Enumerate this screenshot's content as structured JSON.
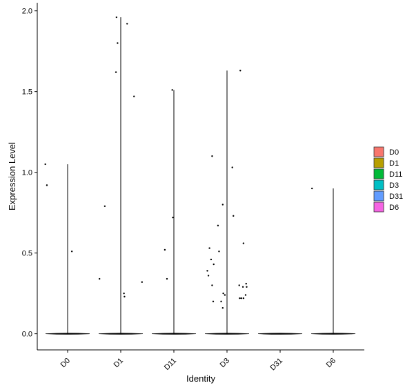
{
  "chart_data": {
    "type": "violin",
    "xlabel": "Identity",
    "ylabel": "Expression Level",
    "categories": [
      "D0",
      "D1",
      "D11",
      "D3",
      "D31",
      "D6"
    ],
    "ylim": [
      -0.1,
      2.05
    ],
    "yticks": [
      0.0,
      0.5,
      1.0,
      1.5,
      2.0
    ],
    "ytick_labels": [
      "0.0",
      "0.5",
      "1.0",
      "1.5",
      "2.0"
    ],
    "legend": {
      "position": "right",
      "entries": [
        {
          "label": "D0",
          "color": "#F8766D"
        },
        {
          "label": "D1",
          "color": "#B79F00"
        },
        {
          "label": "D11",
          "color": "#00BA38"
        },
        {
          "label": "D3",
          "color": "#00BFC4"
        },
        {
          "label": "D31",
          "color": "#619CFF"
        },
        {
          "label": "D6",
          "color": "#F564E3"
        }
      ]
    },
    "groups": [
      {
        "name": "D0",
        "max": 1.05,
        "points": [
          [
            -0.42,
            1.05
          ],
          [
            -0.39,
            0.92
          ],
          [
            0.08,
            0.51
          ]
        ]
      },
      {
        "name": "D1",
        "max": 1.96,
        "points": [
          [
            -0.08,
            1.96
          ],
          [
            -0.06,
            1.8
          ],
          [
            -0.09,
            1.62
          ],
          [
            0.12,
            1.92
          ],
          [
            0.25,
            1.47
          ],
          [
            -0.3,
            0.79
          ],
          [
            -0.4,
            0.34
          ],
          [
            0.06,
            0.25
          ],
          [
            0.07,
            0.23
          ],
          [
            0.4,
            0.32
          ]
        ]
      },
      {
        "name": "D11",
        "max": 1.51,
        "points": [
          [
            -0.03,
            1.51
          ],
          [
            -0.02,
            0.72
          ],
          [
            -0.17,
            0.52
          ],
          [
            -0.13,
            0.34
          ]
        ]
      },
      {
        "name": "D3",
        "max": 1.63,
        "points": [
          [
            0.25,
            1.63
          ],
          [
            -0.28,
            1.1
          ],
          [
            0.1,
            1.03
          ],
          [
            -0.08,
            0.8
          ],
          [
            0.12,
            0.73
          ],
          [
            -0.17,
            0.67
          ],
          [
            0.31,
            0.56
          ],
          [
            -0.33,
            0.53
          ],
          [
            -0.15,
            0.51
          ],
          [
            -0.3,
            0.46
          ],
          [
            -0.25,
            0.43
          ],
          [
            -0.37,
            0.39
          ],
          [
            -0.35,
            0.36
          ],
          [
            -0.28,
            0.3
          ],
          [
            0.23,
            0.3
          ],
          [
            0.36,
            0.31
          ],
          [
            0.3,
            0.29
          ],
          [
            0.37,
            0.29
          ],
          [
            -0.07,
            0.25
          ],
          [
            -0.04,
            0.24
          ],
          [
            0.35,
            0.24
          ],
          [
            0.27,
            0.22
          ],
          [
            0.24,
            0.22
          ],
          [
            0.31,
            0.22
          ],
          [
            -0.26,
            0.2
          ],
          [
            -0.11,
            0.2
          ],
          [
            -0.08,
            0.16
          ]
        ]
      },
      {
        "name": "D31",
        "max": 0.0,
        "points": []
      },
      {
        "name": "D6",
        "max": 0.9,
        "points": [
          [
            -0.4,
            0.9
          ]
        ]
      }
    ]
  }
}
